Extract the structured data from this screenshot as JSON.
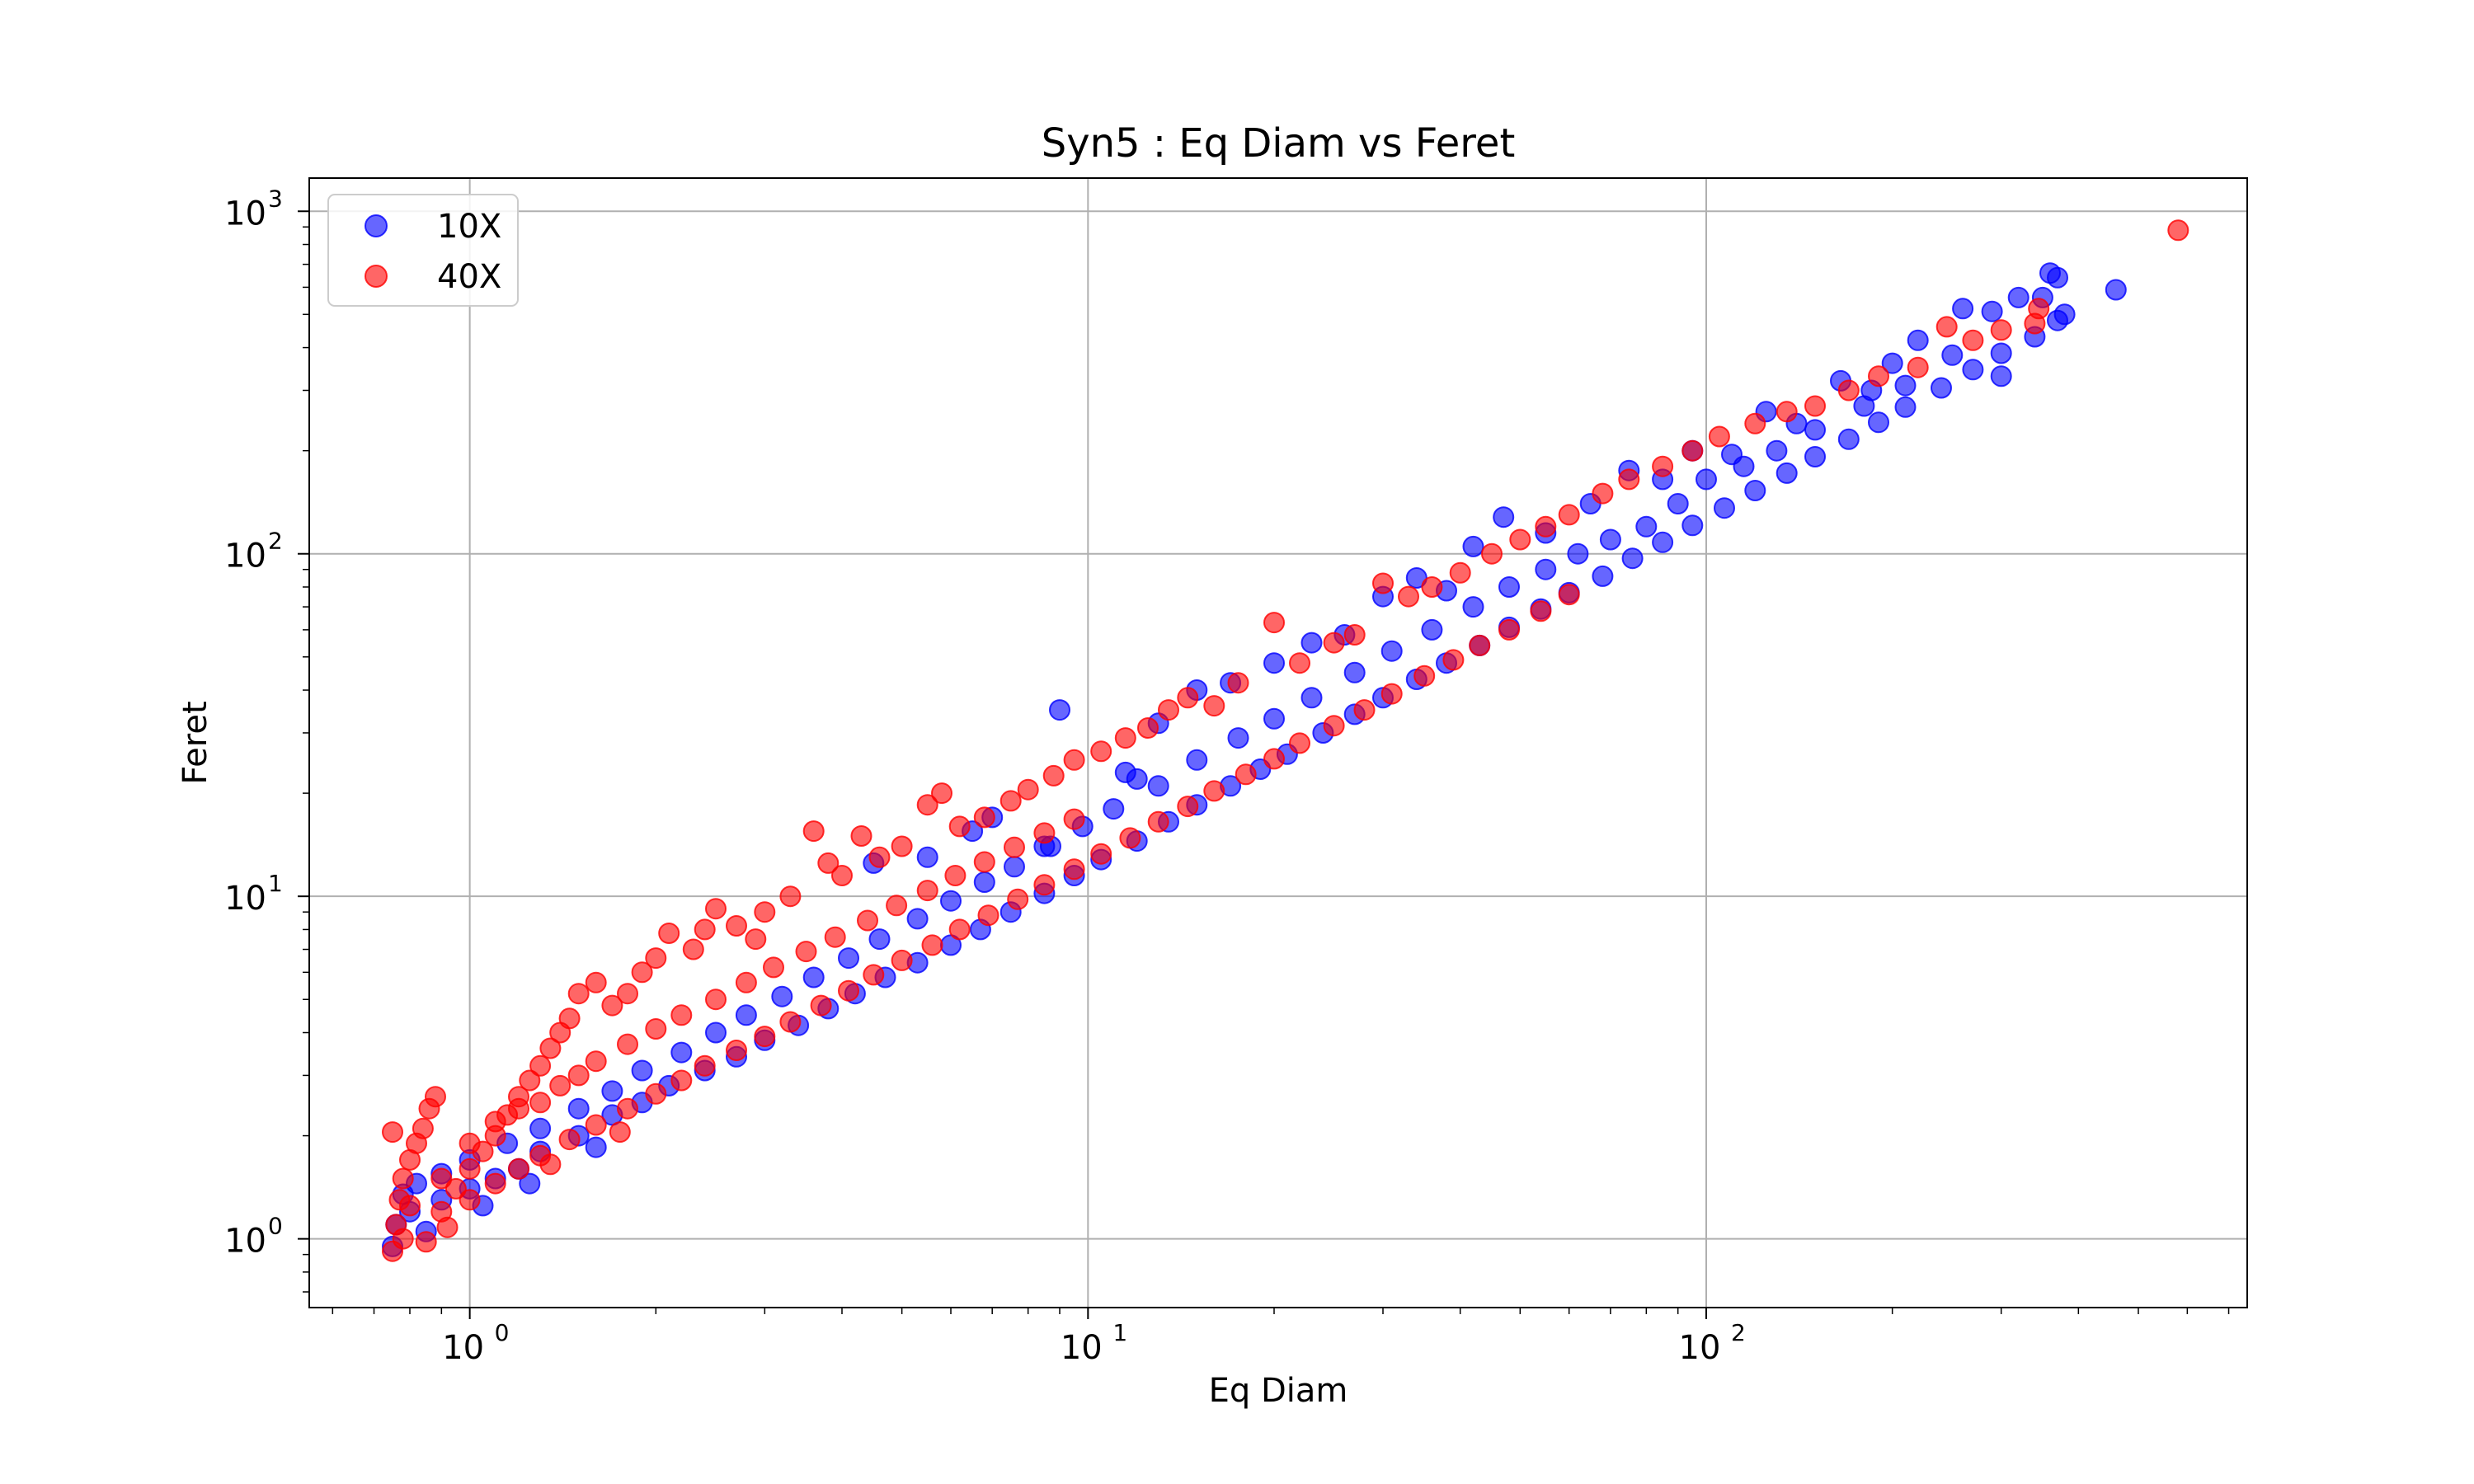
{
  "chart_data": {
    "type": "scatter",
    "title": "Syn5 : Eq Diam vs Feret",
    "xlabel": "Eq Diam",
    "ylabel": "Feret",
    "xscale": "log",
    "yscale": "log",
    "xlim": [
      0.55,
      750
    ],
    "ylim": [
      0.63,
      1250
    ],
    "grid": true,
    "legend_position": "top-left",
    "x_ticks": [
      {
        "base": "10",
        "exp": "0",
        "value": 1
      },
      {
        "base": "10",
        "exp": "1",
        "value": 10
      },
      {
        "base": "10",
        "exp": "2",
        "value": 100
      }
    ],
    "y_ticks": [
      {
        "base": "10",
        "exp": "0",
        "value": 1
      },
      {
        "base": "10",
        "exp": "1",
        "value": 10
      },
      {
        "base": "10",
        "exp": "2",
        "value": 100
      },
      {
        "base": "10",
        "exp": "3",
        "value": 1000
      }
    ],
    "series": [
      {
        "name": "10X",
        "color": "#0000ff",
        "opacity": 0.6,
        "points": [
          [
            0.75,
            0.95
          ],
          [
            0.8,
            1.2
          ],
          [
            0.9,
            1.3
          ],
          [
            1.0,
            1.4
          ],
          [
            1.1,
            1.5
          ],
          [
            1.2,
            1.6
          ],
          [
            1.3,
            1.8
          ],
          [
            1.5,
            2.0
          ],
          [
            1.7,
            2.3
          ],
          [
            1.9,
            2.5
          ],
          [
            2.1,
            2.8
          ],
          [
            2.4,
            3.1
          ],
          [
            2.7,
            3.4
          ],
          [
            3.0,
            3.8
          ],
          [
            3.4,
            4.2
          ],
          [
            3.8,
            4.7
          ],
          [
            4.2,
            5.2
          ],
          [
            4.7,
            5.8
          ],
          [
            5.3,
            6.4
          ],
          [
            6.0,
            7.2
          ],
          [
            6.7,
            8.0
          ],
          [
            7.5,
            9.0
          ],
          [
            8.5,
            10.2
          ],
          [
            9.5,
            11.5
          ],
          [
            10.5,
            12.8
          ],
          [
            12.0,
            14.5
          ],
          [
            13.5,
            16.5
          ],
          [
            15.0,
            18.5
          ],
          [
            17.0,
            21
          ],
          [
            19.0,
            23.5
          ],
          [
            21.0,
            26
          ],
          [
            24.0,
            30
          ],
          [
            27.0,
            34
          ],
          [
            30.0,
            38
          ],
          [
            34.0,
            43
          ],
          [
            38.0,
            48
          ],
          [
            43.0,
            54
          ],
          [
            48.0,
            61
          ],
          [
            54.0,
            69
          ],
          [
            60.0,
            77
          ],
          [
            68.0,
            86
          ],
          [
            76.0,
            97
          ],
          [
            85.0,
            108
          ],
          [
            95.0,
            121
          ],
          [
            107.0,
            136
          ],
          [
            120.0,
            153
          ],
          [
            135.0,
            172
          ],
          [
            150.0,
            192
          ],
          [
            170.0,
            216
          ],
          [
            190.0,
            242
          ],
          [
            210.0,
            268
          ],
          [
            240.0,
            305
          ],
          [
            270.0,
            345
          ],
          [
            300.0,
            385
          ],
          [
            340.0,
            430
          ],
          [
            370.0,
            480
          ],
          [
            9.0,
            35
          ],
          [
            11.5,
            23
          ],
          [
            12.0,
            22
          ],
          [
            7.0,
            17
          ],
          [
            8.5,
            14
          ],
          [
            5.5,
            13
          ],
          [
            4.5,
            12.5
          ],
          [
            6.5,
            15.5
          ],
          [
            13.0,
            32
          ],
          [
            15.0,
            40
          ],
          [
            17.0,
            42
          ],
          [
            20.0,
            48
          ],
          [
            23.0,
            55
          ],
          [
            26.0,
            58
          ],
          [
            30.0,
            75
          ],
          [
            34.0,
            85
          ],
          [
            38.0,
            78
          ],
          [
            42.0,
            105
          ],
          [
            47.0,
            128
          ],
          [
            55.0,
            115
          ],
          [
            65.0,
            140
          ],
          [
            75.0,
            175
          ],
          [
            85.0,
            165
          ],
          [
            95.0,
            200
          ],
          [
            110.0,
            195
          ],
          [
            125.0,
            260
          ],
          [
            140.0,
            240
          ],
          [
            165.0,
            320
          ],
          [
            185.0,
            300
          ],
          [
            200.0,
            360
          ],
          [
            220.0,
            420
          ],
          [
            260.0,
            520
          ],
          [
            290.0,
            510
          ],
          [
            320.0,
            560
          ],
          [
            350.0,
            560
          ],
          [
            370.0,
            640
          ],
          [
            360.0,
            660
          ],
          [
            380.0,
            500
          ],
          [
            460.0,
            590
          ],
          [
            300.0,
            330
          ],
          [
            250.0,
            380
          ],
          [
            210.0,
            310
          ],
          [
            180.0,
            270
          ],
          [
            150.0,
            230
          ],
          [
            130.0,
            200
          ],
          [
            115.0,
            180
          ],
          [
            100.0,
            165
          ],
          [
            90.0,
            140
          ],
          [
            80.0,
            120
          ],
          [
            70.0,
            110
          ],
          [
            62.0,
            100
          ],
          [
            55.0,
            90
          ],
          [
            48.0,
            80
          ],
          [
            42.0,
            70
          ],
          [
            36.0,
            60
          ],
          [
            31.0,
            52
          ],
          [
            27.0,
            45
          ],
          [
            23.0,
            38
          ],
          [
            20.0,
            33
          ],
          [
            17.5,
            29
          ],
          [
            15.0,
            25
          ],
          [
            13.0,
            21
          ],
          [
            11.0,
            18
          ],
          [
            9.8,
            16
          ],
          [
            8.7,
            14
          ],
          [
            7.6,
            12.2
          ],
          [
            6.8,
            11
          ],
          [
            6.0,
            9.7
          ],
          [
            5.3,
            8.6
          ],
          [
            4.6,
            7.5
          ],
          [
            4.1,
            6.6
          ],
          [
            3.6,
            5.8
          ],
          [
            3.2,
            5.1
          ],
          [
            2.8,
            4.5
          ],
          [
            2.5,
            4.0
          ],
          [
            2.2,
            3.5
          ],
          [
            1.9,
            3.1
          ],
          [
            1.7,
            2.7
          ],
          [
            1.5,
            2.4
          ],
          [
            1.3,
            2.1
          ],
          [
            1.15,
            1.9
          ],
          [
            1.0,
            1.7
          ],
          [
            0.9,
            1.55
          ],
          [
            0.82,
            1.45
          ],
          [
            0.78,
            1.35
          ],
          [
            0.76,
            1.1
          ],
          [
            0.85,
            1.05
          ],
          [
            1.05,
            1.25
          ],
          [
            1.25,
            1.45
          ],
          [
            1.6,
            1.85
          ]
        ]
      },
      {
        "name": "40X",
        "color": "#ff0000",
        "opacity": 0.6,
        "points": [
          [
            0.75,
            0.92
          ],
          [
            0.76,
            1.1
          ],
          [
            0.77,
            1.3
          ],
          [
            0.78,
            1.5
          ],
          [
            0.8,
            1.7
          ],
          [
            0.82,
            1.9
          ],
          [
            0.84,
            2.1
          ],
          [
            0.86,
            2.4
          ],
          [
            0.88,
            2.6
          ],
          [
            0.75,
            2.05
          ],
          [
            0.9,
            1.2
          ],
          [
            0.95,
            1.4
          ],
          [
            1.0,
            1.6
          ],
          [
            1.05,
            1.8
          ],
          [
            1.1,
            2.0
          ],
          [
            1.15,
            2.3
          ],
          [
            1.2,
            2.6
          ],
          [
            1.25,
            2.9
          ],
          [
            1.3,
            3.2
          ],
          [
            1.35,
            3.6
          ],
          [
            1.4,
            4.0
          ],
          [
            1.45,
            4.4
          ],
          [
            1.5,
            5.2
          ],
          [
            1.6,
            5.6
          ],
          [
            1.7,
            4.8
          ],
          [
            1.8,
            5.2
          ],
          [
            1.9,
            6.0
          ],
          [
            2.0,
            6.6
          ],
          [
            2.1,
            7.8
          ],
          [
            2.3,
            7.0
          ],
          [
            2.5,
            9.2
          ],
          [
            2.4,
            8.0
          ],
          [
            2.7,
            8.2
          ],
          [
            2.9,
            7.5
          ],
          [
            3.0,
            9.0
          ],
          [
            3.3,
            10.0
          ],
          [
            3.6,
            15.5
          ],
          [
            3.8,
            12.5
          ],
          [
            4.0,
            11.5
          ],
          [
            4.3,
            15.0
          ],
          [
            4.6,
            13.0
          ],
          [
            5.0,
            14.0
          ],
          [
            5.5,
            18.5
          ],
          [
            5.8,
            20.0
          ],
          [
            6.2,
            16.0
          ],
          [
            6.8,
            17.0
          ],
          [
            7.5,
            19.0
          ],
          [
            8.0,
            20.5
          ],
          [
            8.8,
            22.5
          ],
          [
            9.5,
            25.0
          ],
          [
            10.5,
            26.5
          ],
          [
            11.5,
            29.0
          ],
          [
            12.5,
            31.0
          ],
          [
            13.5,
            35.0
          ],
          [
            14.5,
            38.0
          ],
          [
            16.0,
            36.0
          ],
          [
            17.5,
            42.0
          ],
          [
            20.0,
            63.0
          ],
          [
            22.0,
            48.0
          ],
          [
            25.0,
            55.0
          ],
          [
            27.0,
            58.0
          ],
          [
            30.0,
            82.0
          ],
          [
            33.0,
            75.0
          ],
          [
            36.0,
            80.0
          ],
          [
            40.0,
            88.0
          ],
          [
            45.0,
            100.0
          ],
          [
            50.0,
            110.0
          ],
          [
            55.0,
            120.0
          ],
          [
            60.0,
            130.0
          ],
          [
            68.0,
            150.0
          ],
          [
            75.0,
            165.0
          ],
          [
            85.0,
            180.0
          ],
          [
            95.0,
            200.0
          ],
          [
            105.0,
            220.0
          ],
          [
            120.0,
            240.0
          ],
          [
            135.0,
            260.0
          ],
          [
            150.0,
            270.0
          ],
          [
            170.0,
            300.0
          ],
          [
            190.0,
            330.0
          ],
          [
            220.0,
            350.0
          ],
          [
            245.0,
            460.0
          ],
          [
            270.0,
            420.0
          ],
          [
            300.0,
            450.0
          ],
          [
            340.0,
            470.0
          ],
          [
            345.0,
            520.0
          ],
          [
            580.0,
            880.0
          ],
          [
            1.0,
            1.3
          ],
          [
            1.1,
            1.45
          ],
          [
            1.2,
            1.6
          ],
          [
            1.3,
            1.75
          ],
          [
            1.45,
            1.95
          ],
          [
            1.6,
            2.15
          ],
          [
            1.8,
            2.4
          ],
          [
            2.0,
            2.65
          ],
          [
            2.2,
            2.9
          ],
          [
            2.4,
            3.2
          ],
          [
            2.7,
            3.55
          ],
          [
            3.0,
            3.9
          ],
          [
            3.3,
            4.3
          ],
          [
            3.7,
            4.8
          ],
          [
            4.1,
            5.3
          ],
          [
            4.5,
            5.9
          ],
          [
            5.0,
            6.5
          ],
          [
            5.6,
            7.2
          ],
          [
            6.2,
            8.0
          ],
          [
            6.9,
            8.8
          ],
          [
            7.7,
            9.8
          ],
          [
            8.5,
            10.8
          ],
          [
            9.5,
            12.0
          ],
          [
            10.5,
            13.3
          ],
          [
            11.7,
            14.8
          ],
          [
            13.0,
            16.5
          ],
          [
            14.5,
            18.3
          ],
          [
            16.0,
            20.3
          ],
          [
            18.0,
            22.7
          ],
          [
            20.0,
            25.2
          ],
          [
            22.0,
            28.0
          ],
          [
            25.0,
            31.5
          ],
          [
            28.0,
            35.0
          ],
          [
            31.0,
            39.0
          ],
          [
            35.0,
            44.0
          ],
          [
            39.0,
            49.0
          ],
          [
            43.0,
            54.0
          ],
          [
            48.0,
            60.0
          ],
          [
            54.0,
            68.0
          ],
          [
            60.0,
            76.0
          ],
          [
            0.8,
            1.25
          ],
          [
            0.9,
            1.5
          ],
          [
            1.0,
            1.9
          ],
          [
            1.1,
            2.2
          ],
          [
            1.2,
            2.4
          ],
          [
            1.3,
            2.5
          ],
          [
            1.4,
            2.8
          ],
          [
            1.5,
            3.0
          ],
          [
            1.6,
            3.3
          ],
          [
            1.8,
            3.7
          ],
          [
            2.0,
            4.1
          ],
          [
            2.2,
            4.5
          ],
          [
            2.5,
            5.0
          ],
          [
            2.8,
            5.6
          ],
          [
            3.1,
            6.2
          ],
          [
            3.5,
            6.9
          ],
          [
            3.9,
            7.6
          ],
          [
            4.4,
            8.5
          ],
          [
            4.9,
            9.4
          ],
          [
            5.5,
            10.4
          ],
          [
            6.1,
            11.5
          ],
          [
            6.8,
            12.6
          ],
          [
            7.6,
            13.9
          ],
          [
            8.5,
            15.3
          ],
          [
            9.5,
            16.8
          ],
          [
            0.78,
            1.0
          ],
          [
            0.85,
            0.98
          ],
          [
            0.92,
            1.08
          ],
          [
            1.35,
            1.65
          ],
          [
            1.75,
            2.05
          ]
        ]
      }
    ]
  }
}
